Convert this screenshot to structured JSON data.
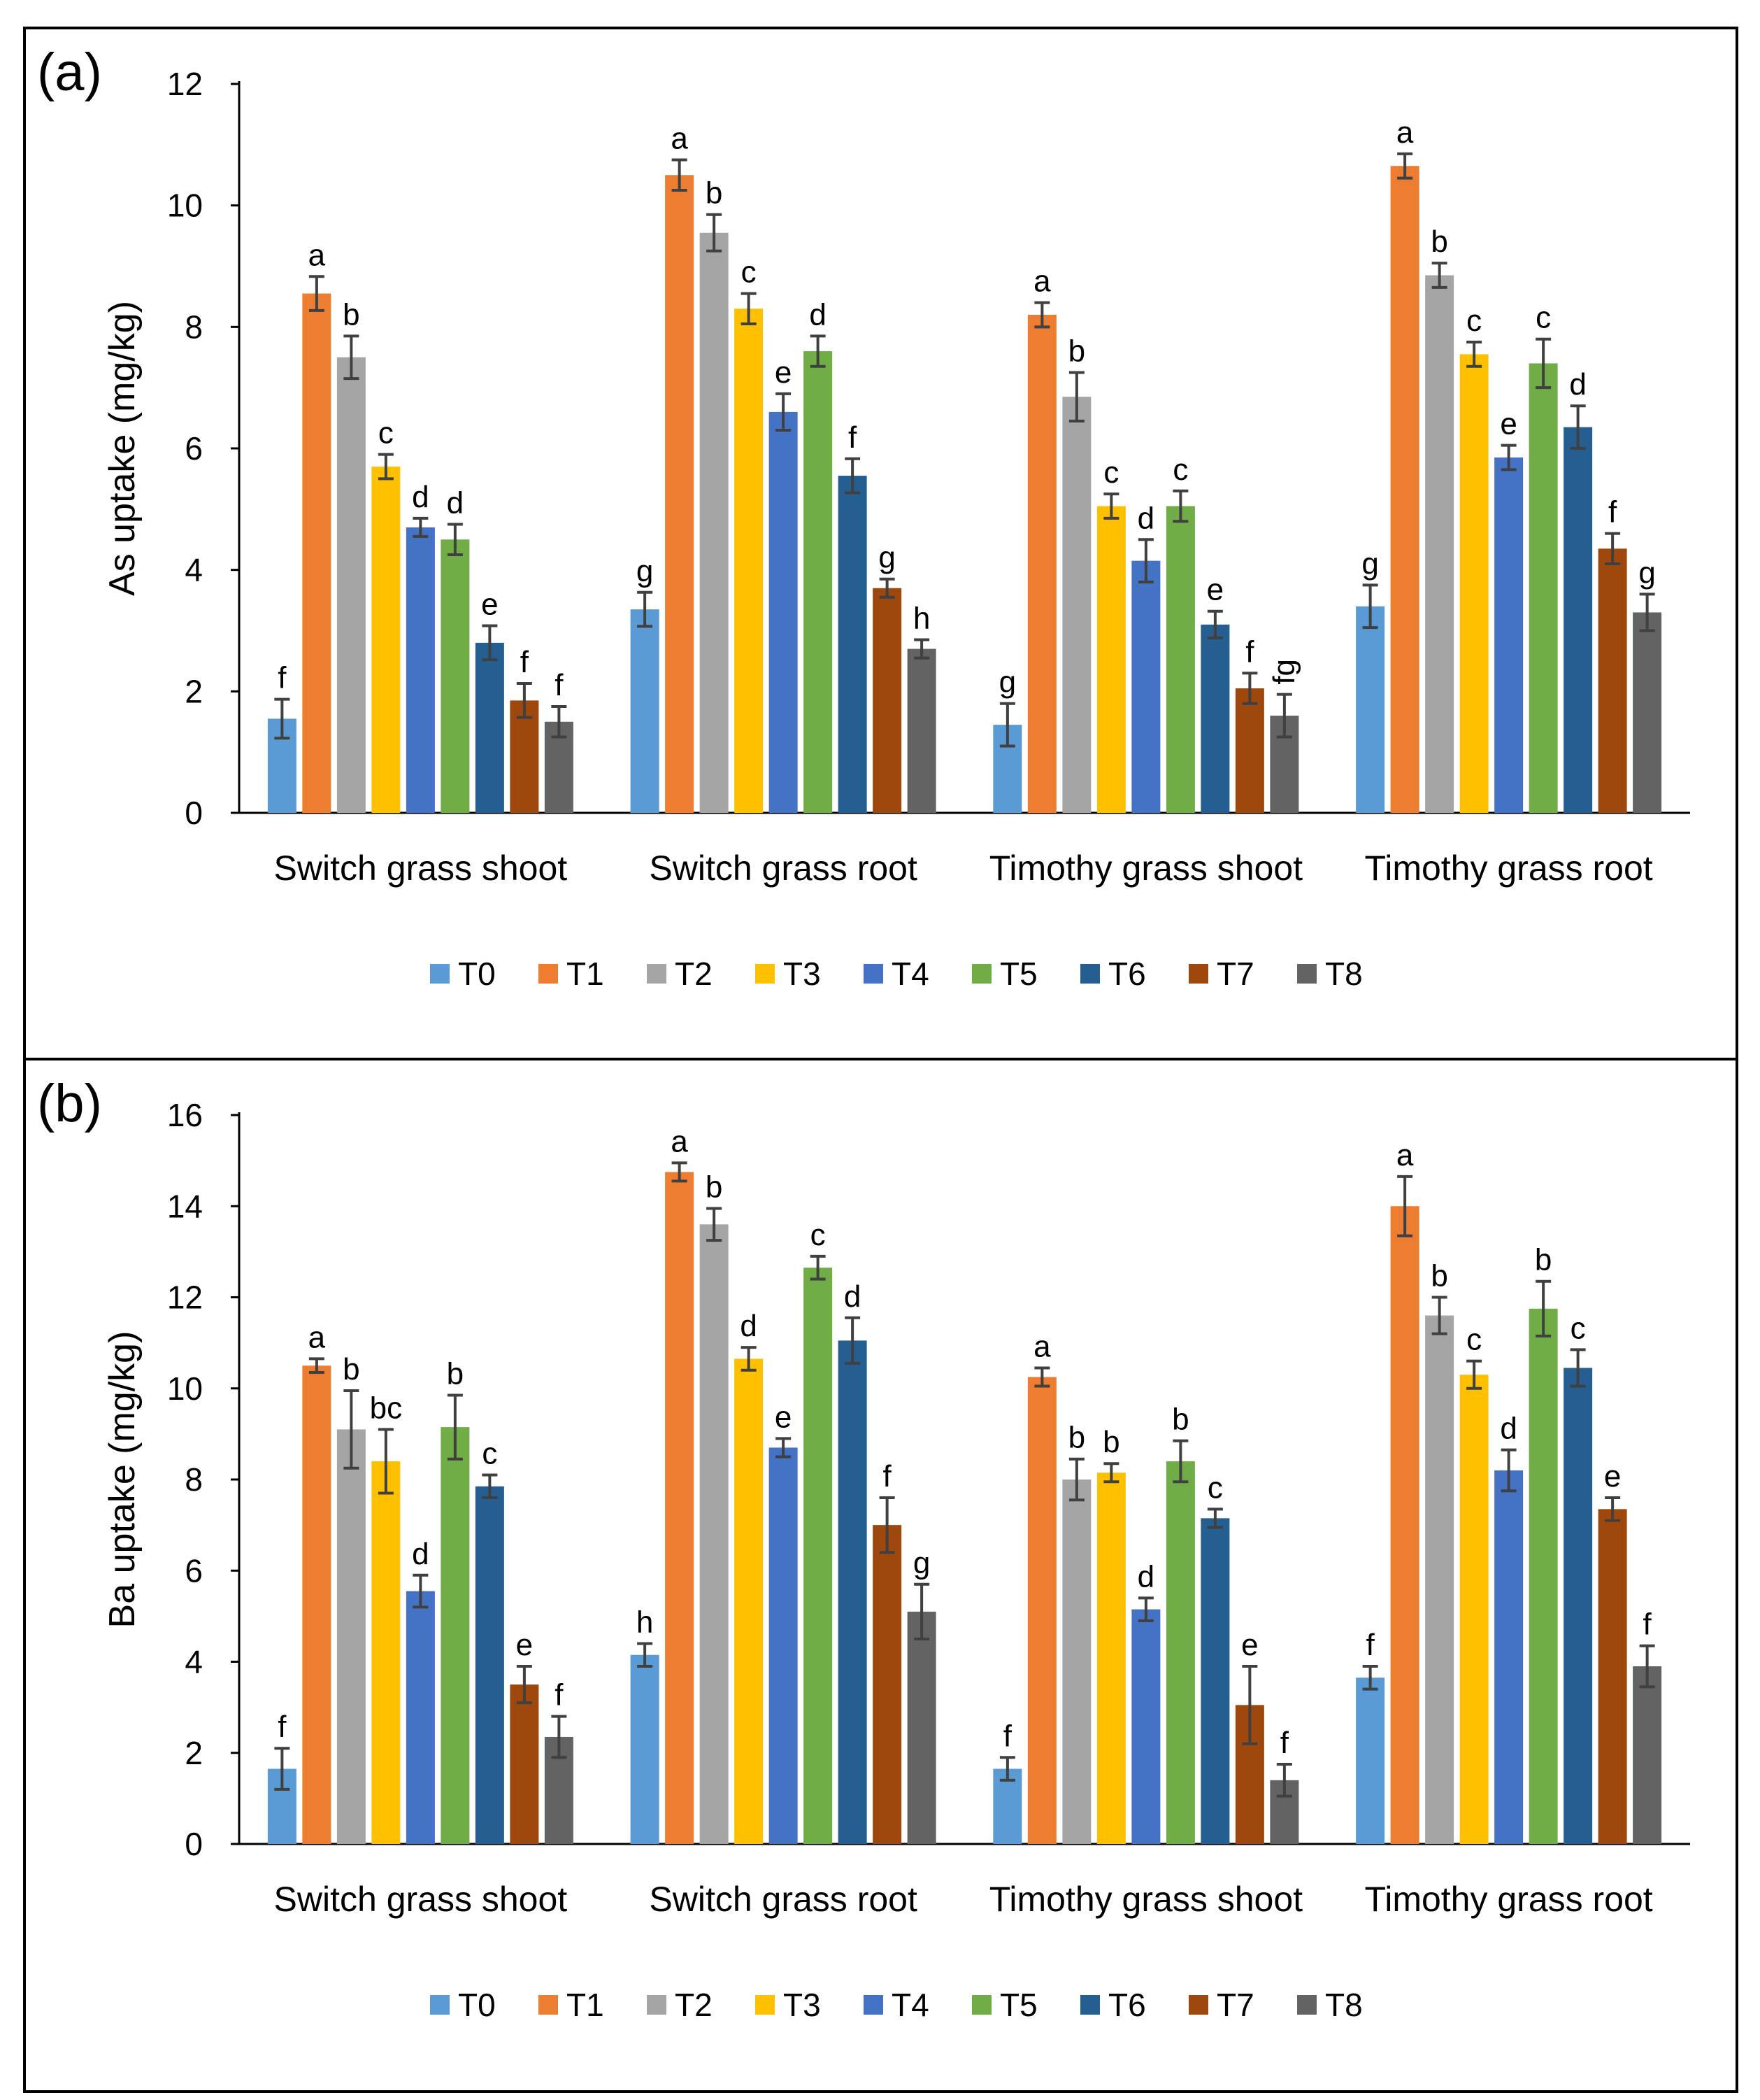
{
  "colors": {
    "T0": "#5b9bd5",
    "T1": "#ed7d31",
    "T2": "#a5a5a5",
    "T3": "#ffc000",
    "T4": "#4472c4",
    "T5": "#70ad47",
    "T6": "#255e91",
    "T7": "#9e480e",
    "T8": "#636363",
    "axis": "#000000",
    "error_bar": "#404040",
    "text": "#000000"
  },
  "chart_data": [
    {
      "type": "bar",
      "panel_label": "(a)",
      "title": "",
      "xlabel": "",
      "ylabel": "As uptake (mg/kg)",
      "ylim": [
        0,
        12
      ],
      "yticks": [
        "0",
        "2",
        "4",
        "6",
        "8",
        "10",
        "12"
      ],
      "grid": false,
      "legend_position": "bottom",
      "categories": [
        "Switch grass shoot",
        "Switch grass root",
        "Timothy grass shoot",
        "Timothy grass root"
      ],
      "series": [
        {
          "name": "T0",
          "values": [
            1.55,
            3.35,
            1.45,
            3.4
          ],
          "errors": [
            0.32,
            0.28,
            0.35,
            0.35
          ],
          "letters": [
            "f",
            "g",
            "g",
            "g"
          ]
        },
        {
          "name": "T1",
          "values": [
            8.55,
            10.5,
            8.2,
            10.65
          ],
          "errors": [
            0.28,
            0.25,
            0.2,
            0.2
          ],
          "letters": [
            "a",
            "a",
            "a",
            "a"
          ]
        },
        {
          "name": "T2",
          "values": [
            7.5,
            9.55,
            6.85,
            8.85
          ],
          "errors": [
            0.35,
            0.3,
            0.4,
            0.2
          ],
          "letters": [
            "b",
            "b",
            "b",
            "b"
          ]
        },
        {
          "name": "T3",
          "values": [
            5.7,
            8.3,
            5.05,
            7.55
          ],
          "errors": [
            0.2,
            0.25,
            0.2,
            0.2
          ],
          "letters": [
            "c",
            "c",
            "c",
            "c"
          ]
        },
        {
          "name": "T4",
          "values": [
            4.7,
            6.6,
            4.15,
            5.85
          ],
          "errors": [
            0.15,
            0.3,
            0.35,
            0.2
          ],
          "letters": [
            "d",
            "e",
            "d",
            "e"
          ]
        },
        {
          "name": "T5",
          "values": [
            4.5,
            7.6,
            5.05,
            7.4
          ],
          "errors": [
            0.25,
            0.25,
            0.25,
            0.4
          ],
          "letters": [
            "d",
            "d",
            "c",
            "c"
          ]
        },
        {
          "name": "T6",
          "values": [
            2.8,
            5.55,
            3.1,
            6.35
          ],
          "errors": [
            0.28,
            0.28,
            0.22,
            0.35
          ],
          "letters": [
            "e",
            "f",
            "e",
            "d"
          ]
        },
        {
          "name": "T7",
          "values": [
            1.85,
            3.7,
            2.05,
            4.35
          ],
          "errors": [
            0.28,
            0.15,
            0.25,
            0.25
          ],
          "letters": [
            "f",
            "g",
            "f",
            "f"
          ]
        },
        {
          "name": "T8",
          "values": [
            1.5,
            2.7,
            1.6,
            3.3
          ],
          "errors": [
            0.25,
            0.15,
            0.35,
            0.3
          ],
          "letters": [
            "f",
            "h",
            "fg",
            "g"
          ]
        }
      ]
    },
    {
      "type": "bar",
      "panel_label": "(b)",
      "title": "",
      "xlabel": "",
      "ylabel": "Ba uptake (mg/kg)",
      "ylim": [
        0,
        16
      ],
      "yticks": [
        "0",
        "2",
        "4",
        "6",
        "8",
        "10",
        "12",
        "14",
        "16"
      ],
      "grid": false,
      "legend_position": "bottom",
      "categories": [
        "Switch grass shoot",
        "Switch grass root",
        "Timothy grass shoot",
        "Timothy grass root"
      ],
      "series": [
        {
          "name": "T0",
          "values": [
            1.65,
            4.15,
            1.65,
            3.65
          ],
          "errors": [
            0.45,
            0.25,
            0.25,
            0.25
          ],
          "letters": [
            "f",
            "h",
            "f",
            "f"
          ]
        },
        {
          "name": "T1",
          "values": [
            10.5,
            14.75,
            10.25,
            14.0
          ],
          "errors": [
            0.15,
            0.2,
            0.2,
            0.65
          ],
          "letters": [
            "a",
            "a",
            "a",
            "a"
          ]
        },
        {
          "name": "T2",
          "values": [
            9.1,
            13.6,
            8.0,
            11.6
          ],
          "errors": [
            0.85,
            0.35,
            0.45,
            0.4
          ],
          "letters": [
            "b",
            "b",
            "b",
            "b"
          ]
        },
        {
          "name": "T3",
          "values": [
            8.4,
            10.65,
            8.15,
            10.3
          ],
          "errors": [
            0.7,
            0.25,
            0.2,
            0.3
          ],
          "letters": [
            "bc",
            "d",
            "b",
            "c"
          ]
        },
        {
          "name": "T4",
          "values": [
            5.55,
            8.7,
            5.15,
            8.2
          ],
          "errors": [
            0.35,
            0.2,
            0.25,
            0.45
          ],
          "letters": [
            "d",
            "e",
            "d",
            "d"
          ]
        },
        {
          "name": "T5",
          "values": [
            9.15,
            12.65,
            8.4,
            11.75
          ],
          "errors": [
            0.7,
            0.25,
            0.45,
            0.6
          ],
          "letters": [
            "b",
            "c",
            "b",
            "b"
          ]
        },
        {
          "name": "T6",
          "values": [
            7.85,
            11.05,
            7.15,
            10.45
          ],
          "errors": [
            0.25,
            0.5,
            0.2,
            0.4
          ],
          "letters": [
            "c",
            "d",
            "c",
            "c"
          ]
        },
        {
          "name": "T7",
          "values": [
            3.5,
            7.0,
            3.05,
            7.35
          ],
          "errors": [
            0.4,
            0.6,
            0.85,
            0.25
          ],
          "letters": [
            "e",
            "f",
            "e",
            "e"
          ]
        },
        {
          "name": "T8",
          "values": [
            2.35,
            5.1,
            1.4,
            3.9
          ],
          "errors": [
            0.45,
            0.6,
            0.35,
            0.45
          ],
          "letters": [
            "f",
            "g",
            "f",
            "f"
          ]
        }
      ]
    }
  ]
}
